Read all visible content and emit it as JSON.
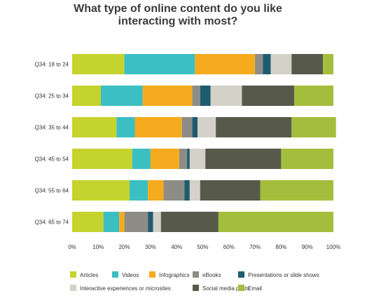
{
  "chart_data": {
    "type": "bar",
    "orientation": "horizontal",
    "stacked": true,
    "title_lines": [
      "What type of online content do you like",
      "interacting with most?"
    ],
    "categories": [
      "Q34: 18 to 24",
      "Q34: 25 to 34",
      "Q34: 35 to 44",
      "Q34: 45 to 54",
      "Q34: 55 to 64",
      "Q34: 65 to 74"
    ],
    "series": [
      {
        "name": "Articles",
        "color": "#c5d32e",
        "values": [
          20,
          11,
          17,
          23,
          22,
          12
        ]
      },
      {
        "name": "Videos",
        "color": "#3cbfc3",
        "values": [
          27,
          16,
          7,
          7,
          7,
          6
        ]
      },
      {
        "name": "Infographics",
        "color": "#f5ab1d",
        "values": [
          23,
          19,
          18,
          11,
          6,
          2
        ]
      },
      {
        "name": "eBooks",
        "color": "#8d8d86",
        "values": [
          3,
          3,
          4,
          3,
          8,
          9
        ]
      },
      {
        "name": "Presentations or slide shows",
        "color": "#1f5b6e",
        "values": [
          3,
          4,
          2,
          1,
          2,
          2
        ]
      },
      {
        "name": "Interactive experiences or microsites",
        "color": "#d3d1c8",
        "values": [
          8,
          12,
          7,
          6,
          4,
          3
        ]
      },
      {
        "name": "Social media posts",
        "color": "#575a4b",
        "values": [
          12,
          20,
          29,
          29,
          23,
          22
        ]
      },
      {
        "name": "Email",
        "color": "#a5bd3d",
        "values": [
          4,
          15,
          17,
          20,
          28,
          44
        ]
      }
    ],
    "x_ticks": [
      "0%",
      "10%",
      "20%",
      "30%",
      "40%",
      "50%",
      "60%",
      "70%",
      "80%",
      "90%",
      "100%"
    ],
    "xlim": [
      0,
      100
    ],
    "grid": false,
    "legend_position": "bottom"
  }
}
